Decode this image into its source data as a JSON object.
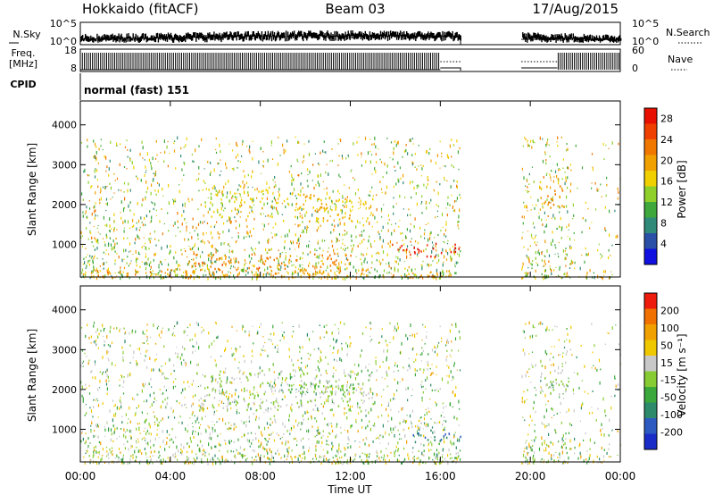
{
  "header": {
    "station": "Hokkaido (fitACF)",
    "beam": "Beam 03",
    "date": "17/Aug/2015"
  },
  "top_panels": {
    "nsky": {
      "label": "N.Sky",
      "ticks": [
        "10^5",
        "10^0"
      ],
      "right_label": "N.Search",
      "right_ticks": [
        "10^5",
        "10^0"
      ]
    },
    "freq": {
      "label": "Freq.",
      "unit": "[MHz]",
      "ticks": [
        "18",
        "8"
      ],
      "right_label": "Nave",
      "right_ticks": [
        "60",
        "0"
      ]
    },
    "cpid": {
      "label": "CPID",
      "value": "normal (fast) 151"
    }
  },
  "colors": {
    "power": [
      "#1010e0",
      "#2a4fa6",
      "#2f8a79",
      "#3ea83c",
      "#8fd02a",
      "#f0d000",
      "#f0a000",
      "#f07800",
      "#f04000",
      "#e81000"
    ],
    "velocity": [
      "#1a2cc8",
      "#2d5ac0",
      "#2d8a6a",
      "#3aa83a",
      "#88cc33",
      "#c8c8c8",
      "#f0c800",
      "#f0a000",
      "#f07000",
      "#ee1c0c"
    ]
  },
  "chart_data": [
    {
      "type": "heatmap",
      "name": "power-panel",
      "xlabel": "Time UT",
      "ylabel": "Slant Range [km]",
      "x_ticks": [
        "00:00",
        "04:00",
        "08:00",
        "12:00",
        "16:00",
        "20:00",
        "00:00"
      ],
      "x_tick_hours": [
        0,
        4,
        8,
        12,
        16,
        20,
        24
      ],
      "xlim_hours": [
        0,
        24
      ],
      "ylim": [
        180,
        4600
      ],
      "y_ticks": [
        1000,
        2000,
        3000,
        4000
      ],
      "data_gaps_hours": [
        [
          16.9,
          19.6
        ]
      ],
      "colorbar": {
        "label": "Power [dB]",
        "ticks": [
          "4",
          "8",
          "12",
          "16",
          "20",
          "24",
          "28"
        ],
        "range": [
          0,
          30
        ]
      },
      "features": [
        {
          "t0": 13.8,
          "t1": 16.9,
          "r0": 700,
          "r1": 1050,
          "value": 28
        },
        {
          "t0": 5.0,
          "t1": 12.0,
          "r0": 400,
          "r1": 800,
          "value": 22
        },
        {
          "t0": 5.5,
          "t1": 9.0,
          "r0": 1700,
          "r1": 2500,
          "value": 16
        },
        {
          "t0": 9.0,
          "t1": 13.0,
          "r0": 1500,
          "r1": 2300,
          "value": 18
        },
        {
          "t0": 20.4,
          "t1": 21.6,
          "r0": 1900,
          "r1": 2700,
          "value": 20
        },
        {
          "t0": 0.0,
          "t1": 16.9,
          "r0": 200,
          "r1": 400,
          "value": 20
        }
      ]
    },
    {
      "type": "heatmap",
      "name": "velocity-panel",
      "xlabel": "Time UT",
      "ylabel": "Slant Range [km]",
      "x_ticks": [
        "00:00",
        "04:00",
        "08:00",
        "12:00",
        "16:00",
        "20:00",
        "00:00"
      ],
      "x_tick_hours": [
        0,
        4,
        8,
        12,
        16,
        20,
        24
      ],
      "xlim_hours": [
        0,
        24
      ],
      "ylim": [
        180,
        4600
      ],
      "y_ticks": [
        1000,
        2000,
        3000,
        4000
      ],
      "data_gaps_hours": [
        [
          16.9,
          19.6
        ]
      ],
      "colorbar": {
        "label": "Velocity [m s⁻¹]",
        "ticks": [
          "200",
          "100",
          "50",
          "15",
          "-15",
          "-50",
          "-100",
          "-200"
        ],
        "range": [
          -250,
          250
        ]
      },
      "features": [
        {
          "t0": 14.5,
          "t1": 16.9,
          "r0": 700,
          "r1": 1050,
          "value": -150
        },
        {
          "t0": 13.5,
          "t1": 15.5,
          "r0": 1000,
          "r1": 1250,
          "value": 50
        },
        {
          "t0": 5.0,
          "t1": 13.0,
          "r0": 1500,
          "r1": 2500,
          "value": 0
        },
        {
          "t0": 9.0,
          "t1": 12.5,
          "r0": 1900,
          "r1": 2200,
          "value": -40
        },
        {
          "t0": 20.4,
          "t1": 21.6,
          "r0": 1900,
          "r1": 2700,
          "value": 0
        }
      ]
    }
  ]
}
